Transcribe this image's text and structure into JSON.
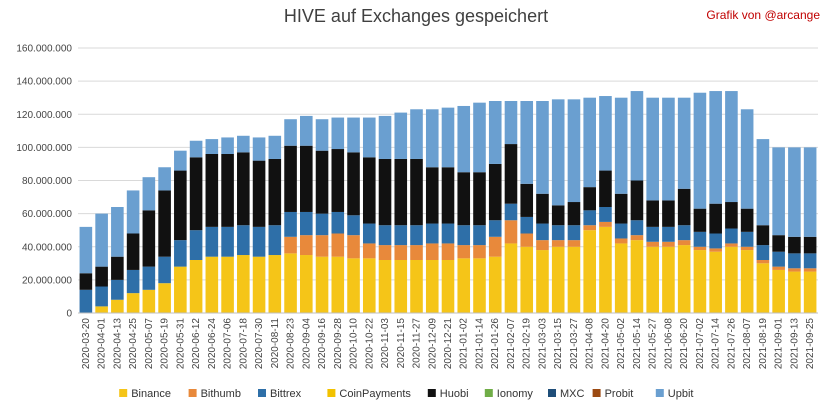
{
  "header": {
    "title": "HIVE auf Exchanges gespeichert",
    "credit": "Grafik von @arcange"
  },
  "chart_data": {
    "type": "bar",
    "stacked": true,
    "title": "HIVE auf Exchanges gespeichert",
    "ylim": [
      0,
      160000000
    ],
    "yticks": [
      "0",
      "20.000.000",
      "40.000.000",
      "60.000.000",
      "80.000.000",
      "100.000.000",
      "120.000.000",
      "140.000.000",
      "160.000.000"
    ],
    "grid": true,
    "legend_position": "bottom",
    "colors": {
      "Binance": "#f5c518",
      "Bithumb": "#e8893b",
      "Bittrex": "#2e6fa8",
      "CoinPayments": "#f2c200",
      "Huobi": "#111111",
      "Ionomy": "#70ad47",
      "MXC": "#1f4e79",
      "Probit": "#9c4a12",
      "Upbit": "#6a9fd0"
    },
    "categories": [
      "2020-03-20",
      "2020-04-01",
      "2020-04-13",
      "2020-04-25",
      "2020-05-07",
      "2020-05-19",
      "2020-05-31",
      "2020-06-12",
      "2020-06-24",
      "2020-07-06",
      "2020-07-18",
      "2020-07-30",
      "2020-08-11",
      "2020-08-23",
      "2020-09-04",
      "2020-09-16",
      "2020-09-28",
      "2020-10-10",
      "2020-10-22",
      "2020-11-03",
      "2020-11-15",
      "2020-11-27",
      "2020-12-09",
      "2020-12-21",
      "2021-01-02",
      "2021-01-14",
      "2021-01-26",
      "2021-02-07",
      "2021-02-19",
      "2021-03-03",
      "2021-03-15",
      "2021-03-27",
      "2021-04-08",
      "2021-04-20",
      "2021-05-02",
      "2021-05-14",
      "2021-05-27",
      "2021-06-08",
      "2021-06-20",
      "2021-07-02",
      "2021-07-14",
      "2021-07-26",
      "2021-08-07",
      "2021-08-19",
      "2021-09-01",
      "2021-09-13",
      "2021-09-25"
    ],
    "series": [
      {
        "name": "Binance",
        "values": [
          0,
          4000000,
          8000000,
          12000000,
          14000000,
          18000000,
          28000000,
          32000000,
          34000000,
          34000000,
          35000000,
          34000000,
          35000000,
          36000000,
          35000000,
          34000000,
          34000000,
          33000000,
          33000000,
          32000000,
          32000000,
          32000000,
          32000000,
          32000000,
          33000000,
          33000000,
          34000000,
          42000000,
          40000000,
          38000000,
          40000000,
          40000000,
          50000000,
          52000000,
          42000000,
          44000000,
          40000000,
          40000000,
          41000000,
          38000000,
          37000000,
          40000000,
          38000000,
          30000000,
          26000000,
          25000000,
          25000000
        ]
      },
      {
        "name": "Bithumb",
        "values": [
          0,
          0,
          0,
          0,
          0,
          0,
          0,
          0,
          0,
          0,
          0,
          0,
          0,
          10000000,
          12000000,
          13000000,
          14000000,
          14000000,
          9000000,
          9000000,
          9000000,
          9000000,
          10000000,
          10000000,
          8000000,
          8000000,
          12000000,
          14000000,
          8000000,
          6000000,
          4000000,
          4000000,
          3000000,
          3000000,
          3000000,
          3000000,
          3000000,
          3000000,
          3000000,
          2000000,
          2000000,
          2000000,
          2000000,
          2000000,
          2000000,
          2000000,
          2000000
        ]
      },
      {
        "name": "Bittrex",
        "values": [
          14000000,
          12000000,
          12000000,
          14000000,
          14000000,
          16000000,
          16000000,
          18000000,
          18000000,
          18000000,
          18000000,
          18000000,
          18000000,
          15000000,
          14000000,
          13000000,
          13000000,
          12000000,
          12000000,
          12000000,
          12000000,
          12000000,
          12000000,
          12000000,
          12000000,
          12000000,
          10000000,
          10000000,
          10000000,
          10000000,
          9000000,
          9000000,
          9000000,
          9000000,
          9000000,
          9000000,
          9000000,
          9000000,
          9000000,
          9000000,
          9000000,
          9000000,
          9000000,
          9000000,
          9000000,
          9000000,
          9000000
        ]
      },
      {
        "name": "CoinPayments",
        "values": [
          0,
          0,
          0,
          0,
          0,
          0,
          0,
          0,
          0,
          0,
          0,
          0,
          0,
          0,
          0,
          0,
          0,
          0,
          0,
          0,
          0,
          0,
          0,
          0,
          0,
          0,
          0,
          0,
          0,
          0,
          0,
          0,
          0,
          0,
          0,
          0,
          0,
          0,
          0,
          0,
          0,
          0,
          0,
          0,
          0,
          0,
          0
        ]
      },
      {
        "name": "Huobi",
        "values": [
          10000000,
          12000000,
          14000000,
          22000000,
          34000000,
          40000000,
          42000000,
          44000000,
          44000000,
          44000000,
          44000000,
          40000000,
          40000000,
          40000000,
          40000000,
          38000000,
          38000000,
          38000000,
          40000000,
          40000000,
          40000000,
          40000000,
          34000000,
          34000000,
          32000000,
          32000000,
          34000000,
          36000000,
          20000000,
          18000000,
          12000000,
          14000000,
          14000000,
          22000000,
          18000000,
          24000000,
          16000000,
          16000000,
          22000000,
          14000000,
          18000000,
          16000000,
          14000000,
          12000000,
          10000000,
          10000000,
          10000000
        ]
      },
      {
        "name": "Ionomy",
        "values": [
          0,
          0,
          0,
          0,
          0,
          0,
          0,
          0,
          0,
          0,
          0,
          0,
          0,
          0,
          0,
          0,
          0,
          0,
          0,
          0,
          0,
          0,
          0,
          0,
          0,
          0,
          0,
          0,
          0,
          0,
          0,
          0,
          0,
          0,
          0,
          0,
          0,
          0,
          0,
          0,
          0,
          0,
          0,
          0,
          0,
          0,
          0
        ]
      },
      {
        "name": "MXC",
        "values": [
          0,
          0,
          0,
          0,
          0,
          0,
          0,
          0,
          0,
          0,
          0,
          0,
          0,
          0,
          0,
          0,
          0,
          0,
          0,
          0,
          0,
          0,
          0,
          0,
          0,
          0,
          0,
          0,
          0,
          0,
          0,
          0,
          0,
          0,
          0,
          0,
          0,
          0,
          0,
          0,
          0,
          0,
          0,
          0,
          0,
          0,
          0
        ]
      },
      {
        "name": "Probit",
        "values": [
          0,
          0,
          0,
          0,
          0,
          0,
          0,
          0,
          0,
          0,
          0,
          0,
          0,
          0,
          0,
          0,
          0,
          0,
          0,
          0,
          0,
          0,
          0,
          0,
          0,
          0,
          0,
          0,
          0,
          0,
          0,
          0,
          0,
          0,
          0,
          0,
          0,
          0,
          0,
          0,
          0,
          0,
          0,
          0,
          0,
          0,
          0
        ]
      },
      {
        "name": "Upbit",
        "values": [
          28000000,
          32000000,
          30000000,
          26000000,
          20000000,
          14000000,
          12000000,
          10000000,
          9000000,
          10000000,
          10000000,
          14000000,
          14000000,
          16000000,
          18000000,
          19000000,
          19000000,
          21000000,
          24000000,
          26000000,
          28000000,
          30000000,
          35000000,
          36000000,
          40000000,
          42000000,
          38000000,
          26000000,
          50000000,
          56000000,
          64000000,
          62000000,
          54000000,
          45000000,
          58000000,
          54000000,
          62000000,
          62000000,
          55000000,
          70000000,
          68000000,
          67000000,
          60000000,
          52000000,
          53000000,
          54000000,
          54000000
        ]
      }
    ]
  }
}
